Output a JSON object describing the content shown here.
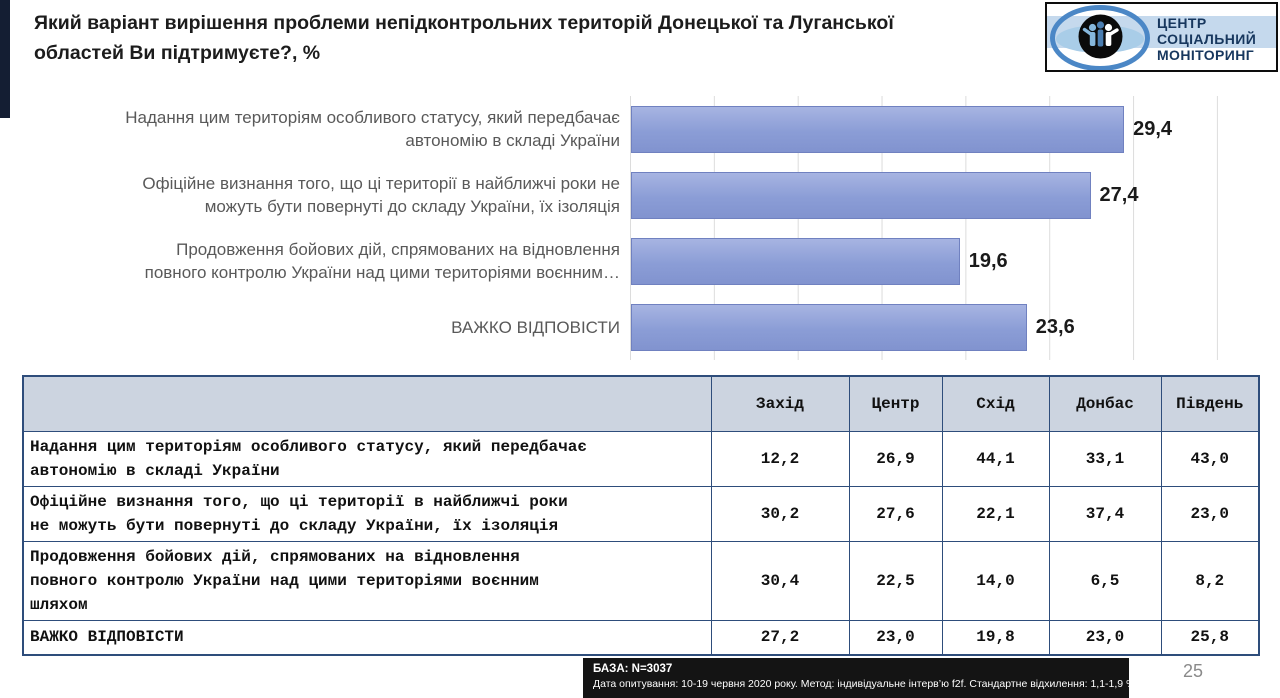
{
  "slide": {
    "title": "Який варіант вирішення проблеми непідконтрольних територій Донецької та Луганської\nобластей Ви підтримуєте?, %",
    "page_number": "25"
  },
  "logo": {
    "text": "ЦЕНТР\nСОЦІАЛЬНИЙ\nМОНІТОРИНГ",
    "colors": {
      "ring": "#4b87c6",
      "band": "#c5d9ed",
      "eye": "#a9cde8",
      "text": "#17375e",
      "person_left": "#86b7dc",
      "person_middle": "#4a7db0",
      "person_right": "#ffffff"
    }
  },
  "chart_data": {
    "type": "bar",
    "orientation": "horizontal",
    "title": "",
    "xlabel": "",
    "ylabel": "",
    "categories": [
      "Надання цим територіям особливого статусу, який передбачає\nавтономію в складі України",
      "Офіційне визнання того, що ці території в найближчі роки не\nможуть бути повернуті до складу України, їх ізоляція",
      "Продовження бойових дій, спрямованих на відновлення\nповного контролю України над цими територіями воєнним…",
      "ВАЖКО ВІДПОВІСТИ"
    ],
    "values": [
      29.4,
      27.4,
      19.6,
      23.6
    ],
    "value_labels": [
      "29,4",
      "27,4",
      "19,6",
      "23,6"
    ],
    "xlim": [
      0,
      35
    ],
    "gridline_interval": 5,
    "grid": true,
    "legend": false,
    "bar_color": "#8ea2d8",
    "bar_border_color": "#7081c0"
  },
  "table": {
    "columns": [
      "Захід",
      "Центр",
      "Схід",
      "Донбас",
      "Південь"
    ],
    "rows": [
      {
        "label": "Надання цим територіям особливого статусу, який передбачає\nавтономію в складі України",
        "values": [
          "12,2",
          "26,9",
          "44,1",
          "33,1",
          "43,0"
        ]
      },
      {
        "label": "Офіційне визнання того, що ці території в найближчі роки\nне можуть бути повернуті до складу України, їх ізоляція",
        "values": [
          "30,2",
          "27,6",
          "22,1",
          "37,4",
          "23,0"
        ]
      },
      {
        "label": "Продовження бойових дій, спрямованих на відновлення\nповного контролю України над цими територіями воєнним\nшляхом",
        "values": [
          "30,4",
          "22,5",
          "14,0",
          "6,5",
          "8,2"
        ]
      },
      {
        "label": "ВАЖКО ВІДПОВІСТИ",
        "values": [
          "27,2",
          "23,0",
          "19,8",
          "23,0",
          "25,8"
        ]
      }
    ],
    "header_bg": "#ccd4e0",
    "border_color": "#2e4d7b"
  },
  "footer": {
    "base": "БАЗА: N=3037",
    "details": "Дата опитування: 10-19 червня 2020 року. Метод: індивідуальне інтерв’ю f2f. Стандартне відхилення: 1,1-1,9 %"
  }
}
